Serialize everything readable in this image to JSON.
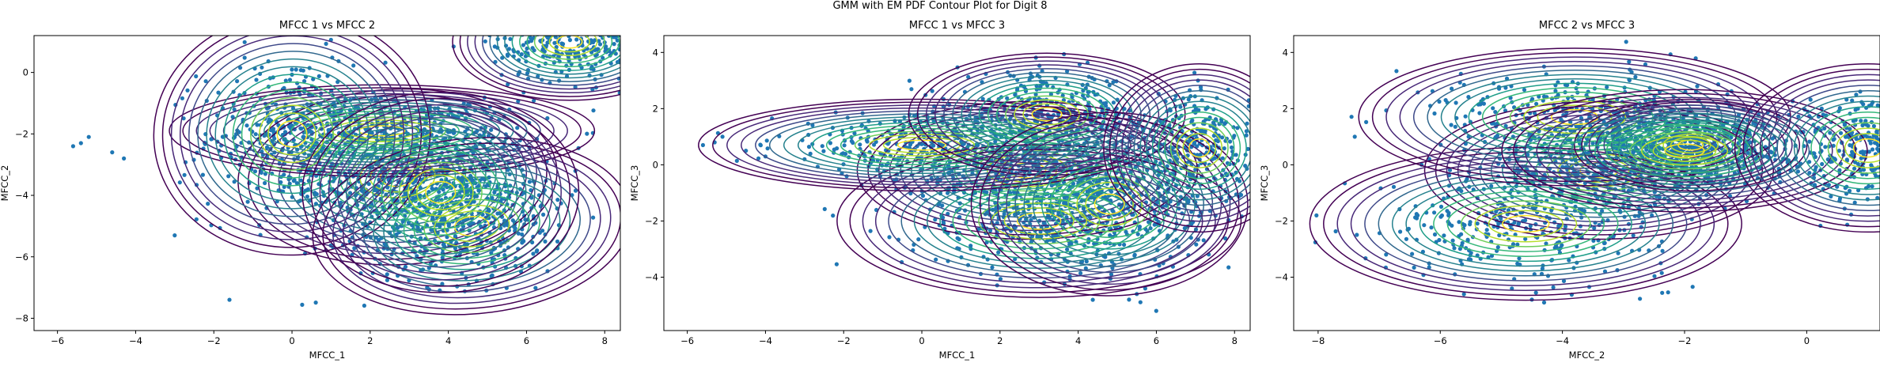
{
  "figure": {
    "title": "GMM with EM PDF Contour Plot for Digit 8"
  },
  "chart_data": [
    {
      "type": "scatter",
      "title": "MFCC 1 vs MFCC 2",
      "xlabel": "MFCC_1",
      "ylabel": "MFCC_2",
      "xlim": [
        -6.6,
        8.4
      ],
      "ylim": [
        -8.4,
        1.2
      ],
      "xticks": [
        "−6",
        "−4",
        "−2",
        "0",
        "2",
        "4",
        "6",
        "8"
      ],
      "xtick_values": [
        -6,
        -4,
        -2,
        0,
        2,
        4,
        6,
        8
      ],
      "yticks": [
        "−8",
        "−6",
        "−4",
        "−2",
        "0"
      ],
      "ytick_values": [
        -8,
        -6,
        -4,
        -2,
        0
      ],
      "point_color": "#1f77b4",
      "colormap": "viridis",
      "components": [
        {
          "mx": 2.7,
          "my": -3.4,
          "sx": 1.5,
          "sy": 1.05,
          "rho": 0.1
        },
        {
          "mx": 2.3,
          "my": -1.9,
          "sx": 2.0,
          "sy": 0.55,
          "rho": 0.0
        },
        {
          "mx": 0.0,
          "my": -2.0,
          "sx": 1.3,
          "sy": 1.45,
          "rho": 0.1
        },
        {
          "mx": 4.6,
          "my": -5.0,
          "sx": 1.5,
          "sy": 1.05,
          "rho": 0.2
        },
        {
          "mx": 3.8,
          "my": -3.9,
          "sx": 1.3,
          "sy": 1.2,
          "rho": 0.0
        },
        {
          "mx": 7.1,
          "my": 1.0,
          "sx": 1.1,
          "sy": 0.7,
          "rho": 0.0
        }
      ],
      "outliers": [
        [
          -5.6,
          -2.4
        ],
        [
          -5.4,
          -2.3
        ],
        [
          -5.2,
          -2.1
        ],
        [
          -4.6,
          -2.6
        ],
        [
          -4.3,
          -2.8
        ],
        [
          -3.0,
          -5.3
        ],
        [
          -1.6,
          -7.4
        ]
      ]
    },
    {
      "type": "scatter",
      "title": "MFCC 1 vs MFCC 3",
      "xlabel": "MFCC_1",
      "ylabel": "MFCC_3",
      "xlim": [
        -6.6,
        8.4
      ],
      "ylim": [
        -5.9,
        4.6
      ],
      "xticks": [
        "−6",
        "−4",
        "−2",
        "0",
        "2",
        "4",
        "6",
        "8"
      ],
      "xtick_values": [
        -6,
        -4,
        -2,
        0,
        2,
        4,
        6,
        8
      ],
      "yticks": [
        "−4",
        "−2",
        "0",
        "2",
        "4"
      ],
      "ytick_values": [
        -4,
        -2,
        0,
        2,
        4
      ],
      "point_color": "#1f77b4",
      "colormap": "viridis",
      "components": [
        {
          "mx": 2.7,
          "my": -0.2,
          "sx": 1.6,
          "sy": 0.9,
          "rho": 0.0
        },
        {
          "mx": 3.0,
          "my": -2.0,
          "sx": 1.9,
          "sy": 1.0,
          "rho": 0.0
        },
        {
          "mx": 0.0,
          "my": 0.7,
          "sx": 2.1,
          "sy": 0.6,
          "rho": 0.0
        },
        {
          "mx": 3.2,
          "my": 1.8,
          "sx": 1.3,
          "sy": 0.8,
          "rho": 0.0
        },
        {
          "mx": 4.8,
          "my": -1.4,
          "sx": 1.3,
          "sy": 1.2,
          "rho": 0.0
        },
        {
          "mx": 7.1,
          "my": 0.6,
          "sx": 0.9,
          "sy": 1.1,
          "rho": 0.0
        }
      ],
      "outliers": [
        [
          -5.6,
          0.7
        ],
        [
          -5.3,
          0.8
        ],
        [
          -5.1,
          1.0
        ],
        [
          -4.5,
          0.5
        ],
        [
          -4.0,
          0.3
        ],
        [
          -3.0,
          0.2
        ],
        [
          5.3,
          -4.8
        ],
        [
          5.5,
          -4.6
        ]
      ]
    },
    {
      "type": "scatter",
      "title": "MFCC 2 vs MFCC 3",
      "xlabel": "MFCC_2",
      "ylabel": "MFCC_3",
      "xlim": [
        -8.4,
        1.2
      ],
      "ylim": [
        -5.9,
        4.6
      ],
      "xticks": [
        "−8",
        "−6",
        "−4",
        "−2",
        "0"
      ],
      "xtick_values": [
        -8,
        -6,
        -4,
        -2,
        0
      ],
      "yticks": [
        "−4",
        "−2",
        "0",
        "2",
        "4"
      ],
      "ytick_values": [
        -4,
        -2,
        0,
        2,
        4
      ],
      "point_color": "#1f77b4",
      "colormap": "viridis",
      "components": [
        {
          "mx": -3.4,
          "my": -0.2,
          "sx": 1.05,
          "sy": 0.9,
          "rho": 0.0
        },
        {
          "mx": -4.6,
          "my": -2.1,
          "sx": 1.3,
          "sy": 1.0,
          "rho": 0.0
        },
        {
          "mx": -3.8,
          "my": 1.7,
          "sx": 1.3,
          "sy": 0.9,
          "rho": 0.0
        },
        {
          "mx": -1.9,
          "my": 0.7,
          "sx": 0.7,
          "sy": 0.6,
          "rho": 0.0
        },
        {
          "mx": -2.0,
          "my": 0.5,
          "sx": 1.1,
          "sy": 0.8,
          "rho": 0.0
        },
        {
          "mx": 1.0,
          "my": 0.6,
          "sx": 0.8,
          "sy": 1.1,
          "rho": 0.0
        }
      ],
      "outliers": [
        [
          -7.4,
          1.0
        ],
        [
          -4.5,
          -4.8
        ],
        [
          -4.3,
          -4.9
        ]
      ]
    }
  ]
}
